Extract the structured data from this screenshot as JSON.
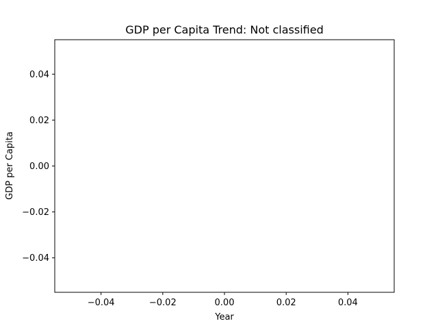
{
  "chart_data": {
    "type": "line",
    "title": "GDP per Capita Trend: Not classified",
    "xlabel": "Year",
    "ylabel": "GDP per Capita",
    "xlim": [
      -0.055,
      0.055
    ],
    "ylim": [
      -0.055,
      0.055
    ],
    "x_ticks": [
      -0.04,
      -0.02,
      0.0,
      0.02,
      0.04
    ],
    "x_tick_labels": [
      "−0.04",
      "−0.02",
      "0.00",
      "0.02",
      "0.04"
    ],
    "y_ticks": [
      -0.04,
      -0.02,
      0.0,
      0.02,
      0.04
    ],
    "y_tick_labels": [
      "−0.04",
      "−0.02",
      "0.00",
      "0.02",
      "0.04"
    ],
    "grid": false,
    "series": [
      {
        "name": "GDP per Capita",
        "x": [],
        "y": []
      }
    ]
  }
}
